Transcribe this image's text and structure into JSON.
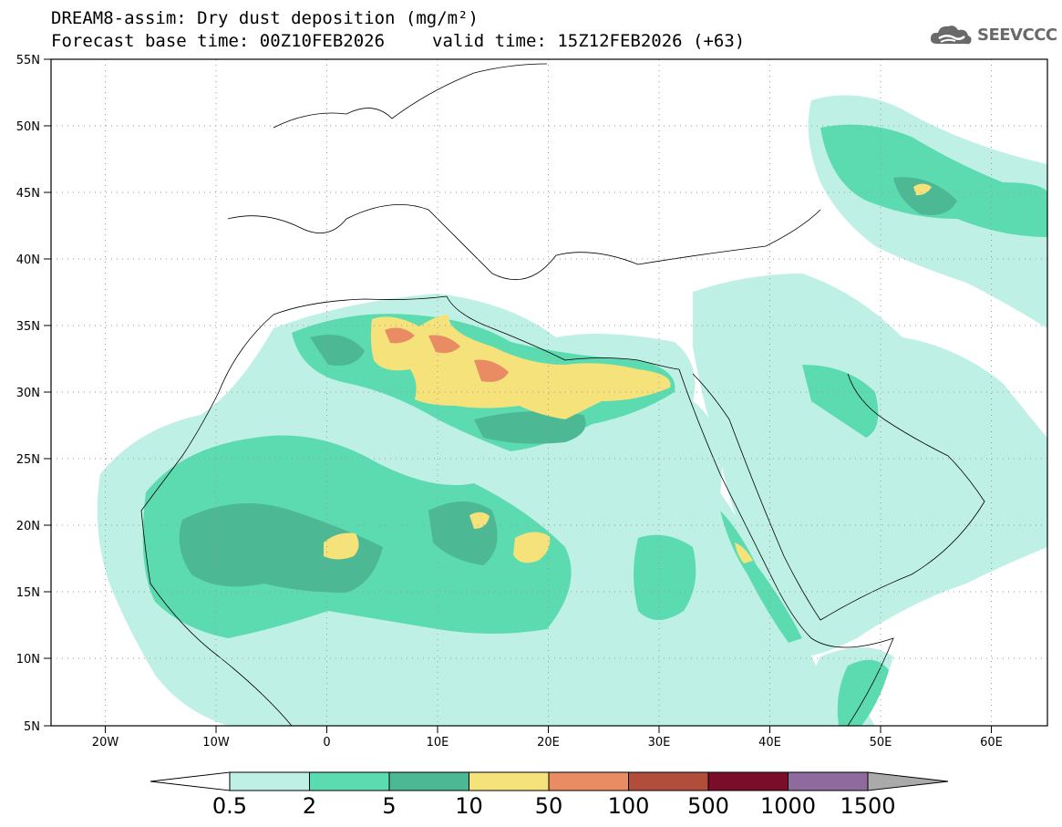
{
  "title": {
    "line1": "DREAM8-assim: Dry dust deposition (mg/m²)",
    "base_time": "Forecast base time: 00Z10FEB2026",
    "valid_time": "valid time: 15Z12FEB2026 (+63)"
  },
  "logo": {
    "text": "SEEVCCC",
    "icon": "cloud-icon"
  },
  "axes": {
    "lat_labels": [
      "55N",
      "50N",
      "45N",
      "40N",
      "35N",
      "30N",
      "25N",
      "20N",
      "15N",
      "10N",
      "5N"
    ],
    "lon_labels": [
      "20W",
      "10W",
      "0",
      "10E",
      "20E",
      "30E",
      "40E",
      "50E",
      "60E"
    ]
  },
  "colorbar": {
    "colors": [
      "#bff0e6",
      "#5ddbb0",
      "#4db894",
      "#f6e27a",
      "#e98c63",
      "#b04e3b",
      "#7a0e2a",
      "#8e6a9e"
    ],
    "under_color": "#ffffff",
    "over_color": "#aaaaaa",
    "labels": [
      "0.5",
      "2",
      "5",
      "10",
      "50",
      "100",
      "500",
      "1000",
      "1500"
    ]
  }
}
